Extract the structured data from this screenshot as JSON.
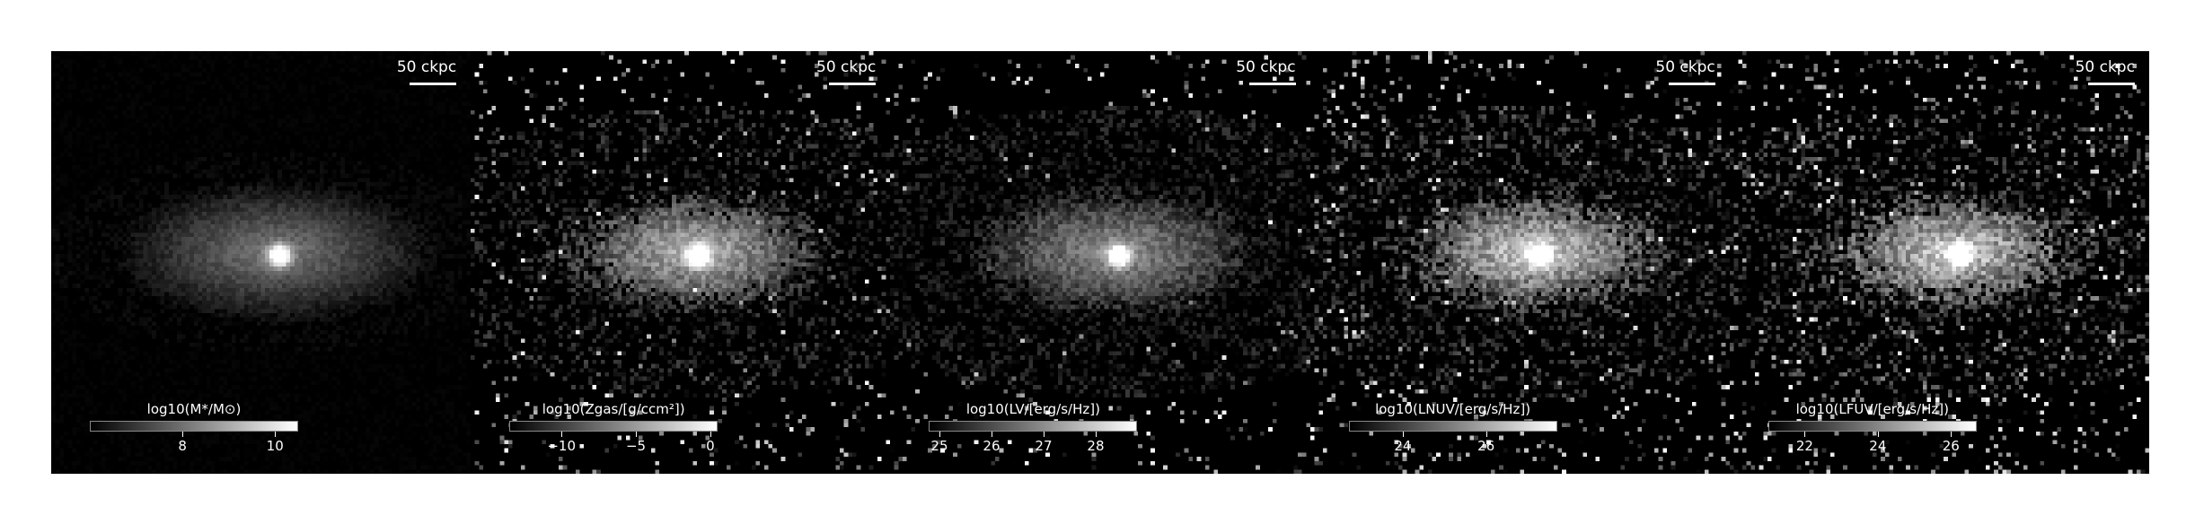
{
  "figure": {
    "panels": [
      {
        "id": "stellar-mass",
        "scale_bar_label": "50 ckpc",
        "colorbar_label": "log10(M*/M⊙)",
        "ticks": [
          {
            "label": "8",
            "value": 8
          },
          {
            "label": "10",
            "value": 10
          }
        ],
        "colorbar_range": [
          6.0,
          10.5
        ]
      },
      {
        "id": "metallicity",
        "scale_bar_label": "50 ckpc",
        "colorbar_label": "log10(Zgas/[g/ccm²])",
        "ticks": [
          {
            "label": "−10",
            "value": -10
          },
          {
            "label": "−5",
            "value": -5
          },
          {
            "label": "0",
            "value": 0
          }
        ],
        "colorbar_range": [
          -13.5,
          0.5
        ]
      },
      {
        "id": "v-band-luminosity",
        "scale_bar_label": "50 ckpc",
        "colorbar_label": "log10(LV/[erg/s/Hz])",
        "ticks": [
          {
            "label": "25",
            "value": 25
          },
          {
            "label": "26",
            "value": 26
          },
          {
            "label": "27",
            "value": 27
          },
          {
            "label": "28",
            "value": 28
          }
        ],
        "colorbar_range": [
          24.8,
          28.8
        ]
      },
      {
        "id": "nuv-luminosity",
        "scale_bar_label": "50 ckpc",
        "colorbar_label": "log10(LNUV/[erg/s/Hz])",
        "ticks": [
          {
            "label": "24",
            "value": 24
          },
          {
            "label": "26",
            "value": 26
          }
        ],
        "colorbar_range": [
          22.7,
          27.7
        ]
      },
      {
        "id": "fuv-luminosity",
        "scale_bar_label": "50 ckpc",
        "colorbar_label": "log10(LFUV/[erg/s/Hz])",
        "ticks": [
          {
            "label": "22",
            "value": 22
          },
          {
            "label": "24",
            "value": 24
          },
          {
            "label": "26",
            "value": 26
          }
        ],
        "colorbar_range": [
          21.0,
          26.7
        ]
      }
    ]
  }
}
